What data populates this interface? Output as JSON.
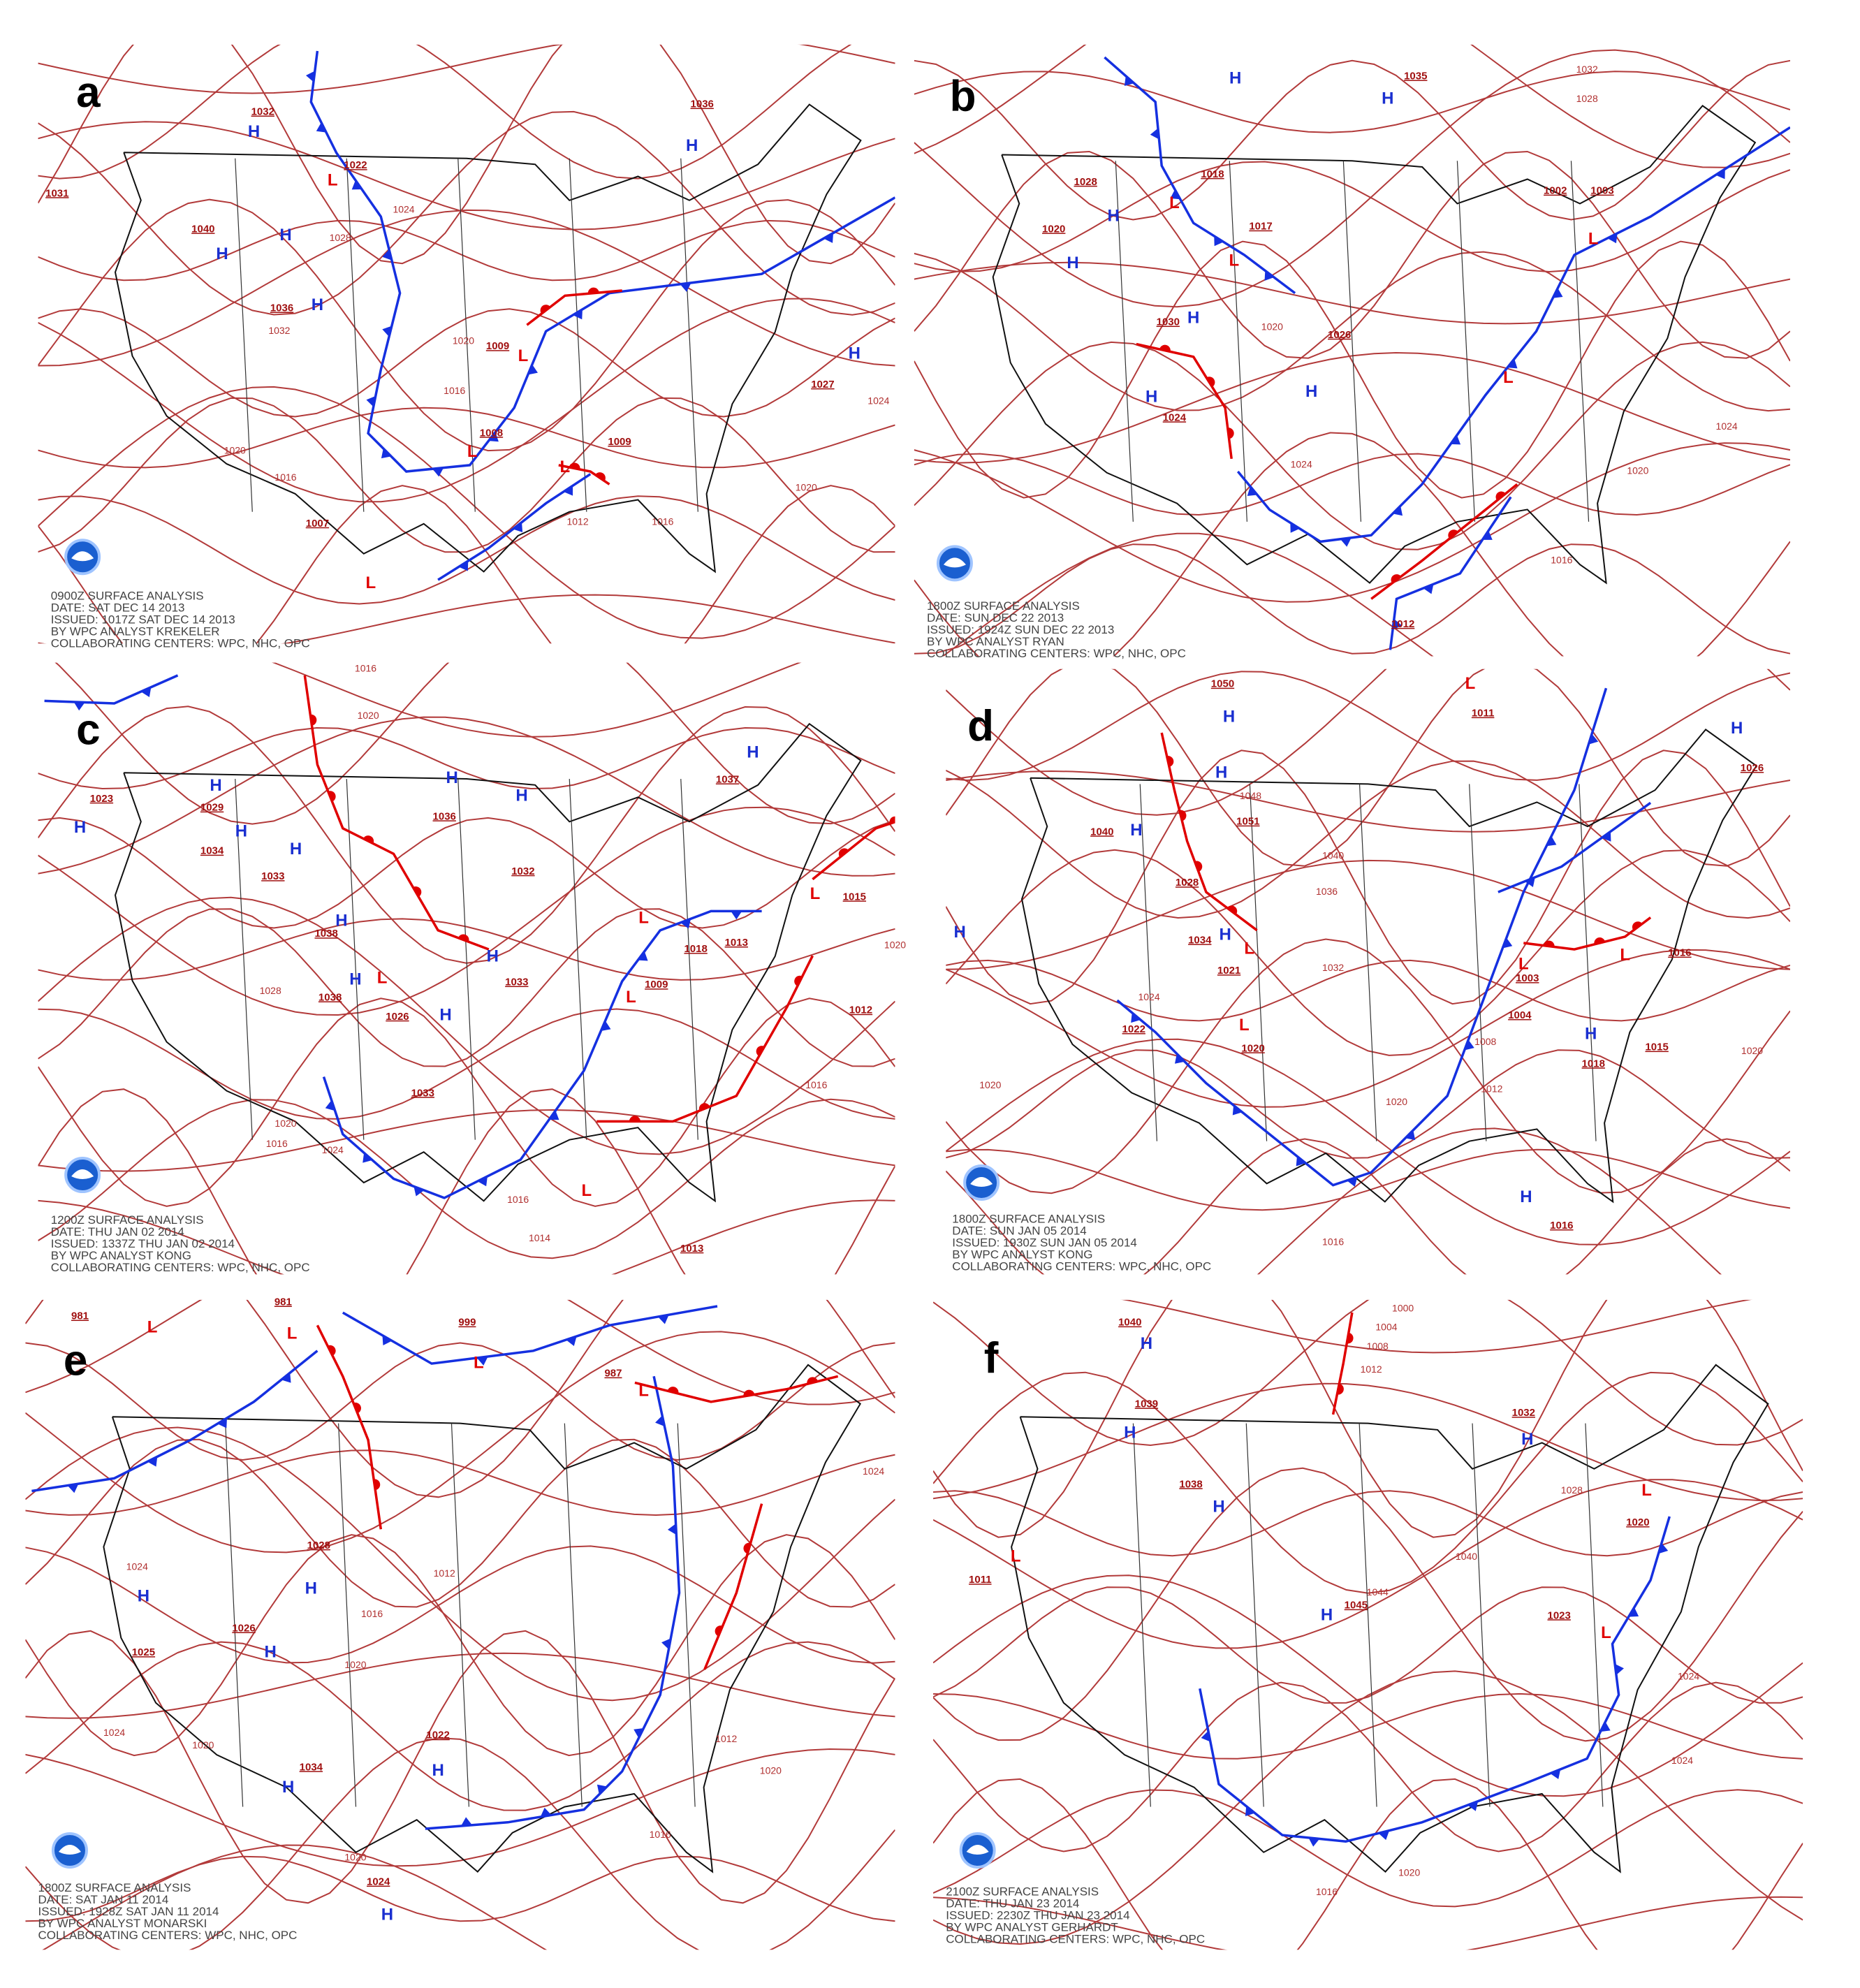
{
  "panels": [
    {
      "letter": "a",
      "caption": [
        "0900Z SURFACE ANALYSIS",
        "DATE: SAT DEC 14 2013",
        "ISSUED: 1017Z SAT DEC 14 2013",
        "BY WPC ANALYST KREKELER",
        "COLLABORATING CENTERS: WPC, NHC, OPC"
      ],
      "centers": [
        "1036",
        "1032",
        "1022",
        "1031",
        "1040",
        "1036",
        "1009",
        "1027",
        "1008",
        "1009",
        "1007"
      ],
      "highs": [
        "H",
        "H",
        "H",
        "H",
        "H",
        "H"
      ],
      "lows": [
        "L",
        "L",
        "L",
        "L",
        "L"
      ],
      "isobars": [
        "1024",
        "1028",
        "1032",
        "1020",
        "1016",
        "1020",
        "1016",
        "1012",
        "1016",
        "1020",
        "1024"
      ]
    },
    {
      "letter": "b",
      "caption": [
        "1800Z SURFACE ANALYSIS",
        "DATE: SUN DEC 22 2013",
        "ISSUED: 1924Z SUN DEC 22 2013",
        "BY WPC ANALYST RYAN",
        "COLLABORATING CENTERS: WPC, NHC, OPC"
      ],
      "centers": [
        "1035",
        "1018",
        "1028",
        "1017",
        "1020",
        "1002",
        "1003",
        "1030",
        "1026",
        "1024",
        "1012"
      ],
      "highs": [
        "H",
        "H",
        "H",
        "H",
        "H",
        "H",
        "H"
      ],
      "lows": [
        "L",
        "L",
        "L",
        "L"
      ],
      "isobars": [
        "1032",
        "1028",
        "1020",
        "1024",
        "1020",
        "1016",
        "1024"
      ]
    },
    {
      "letter": "c",
      "caption": [
        "1200Z SURFACE ANALYSIS",
        "DATE: THU JAN 02 2014",
        "ISSUED: 1337Z THU JAN 02 2014",
        "BY WPC ANALYST KONG",
        "COLLABORATING CENTERS: WPC, NHC, OPC"
      ],
      "centers": [
        "1023",
        "1029",
        "1034",
        "1033",
        "1036",
        "1037",
        "1015",
        "1032",
        "1038",
        "1038",
        "1026",
        "1033",
        "1018",
        "1013",
        "1033",
        "1012",
        "1009",
        "1013"
      ],
      "highs": [
        "H",
        "H",
        "H",
        "H",
        "H",
        "H",
        "H",
        "H",
        "H",
        "H",
        "H"
      ],
      "lows": [
        "L",
        "L",
        "L",
        "L",
        "L"
      ],
      "isobars": [
        "1016",
        "1020",
        "1028",
        "1020",
        "1016",
        "1024",
        "1016",
        "1014",
        "1016",
        "1020"
      ]
    },
    {
      "letter": "d",
      "caption": [
        "1800Z SURFACE ANALYSIS",
        "DATE: SUN JAN 05 2014",
        "ISSUED: 1930Z SUN JAN 05 2014",
        "BY WPC ANALYST KONG",
        "COLLABORATING CENTERS: WPC, NHC, OPC"
      ],
      "centers": [
        "1050",
        "1011",
        "1026",
        "1040",
        "1051",
        "1028",
        "1034",
        "1021",
        "1022",
        "1020",
        "1003",
        "1004",
        "1016",
        "1018",
        "1015",
        "1016"
      ],
      "highs": [
        "H",
        "H",
        "H",
        "H",
        "H",
        "H",
        "H",
        "H"
      ],
      "lows": [
        "L",
        "L",
        "L",
        "L",
        "L"
      ],
      "isobars": [
        "1048",
        "1040",
        "1036",
        "1032",
        "1024",
        "1020",
        "1020",
        "1008",
        "1012",
        "1020",
        "1016"
      ]
    },
    {
      "letter": "e",
      "caption": [
        "1800Z SURFACE ANALYSIS",
        "DATE: SAT JAN 11 2014",
        "ISSUED: 1928Z SAT JAN 11 2014",
        "BY WPC ANALYST MONARSKI",
        "COLLABORATING CENTERS: WPC, NHC, OPC"
      ],
      "centers": [
        "981",
        "981",
        "999",
        "987",
        "1028",
        "1026",
        "1025",
        "1022",
        "1034",
        "1024"
      ],
      "highs": [
        "H",
        "H",
        "H",
        "H",
        "H",
        "H"
      ],
      "lows": [
        "L",
        "L",
        "L",
        "L"
      ],
      "isobars": [
        "1024",
        "1012",
        "1016",
        "1020",
        "1024",
        "1020",
        "1020",
        "1016",
        "1012",
        "1020",
        "1024"
      ]
    },
    {
      "letter": "f",
      "caption": [
        "2100Z SURFACE ANALYSIS",
        "DATE: THU JAN 23 2014",
        "ISSUED: 2230Z THU JAN 23 2014",
        "BY WPC ANALYST GERHARDT",
        "COLLABORATING CENTERS: WPC, NHC, OPC"
      ],
      "centers": [
        "1040",
        "1039",
        "1032",
        "1038",
        "1011",
        "1045",
        "1023",
        "1020"
      ],
      "highs": [
        "H",
        "H",
        "H",
        "H",
        "H"
      ],
      "lows": [
        "L",
        "L",
        "L"
      ],
      "isobars": [
        "1000",
        "1004",
        "1008",
        "1012",
        "1040",
        "1044",
        "1028",
        "1024",
        "1024",
        "1016",
        "1020"
      ]
    }
  ]
}
